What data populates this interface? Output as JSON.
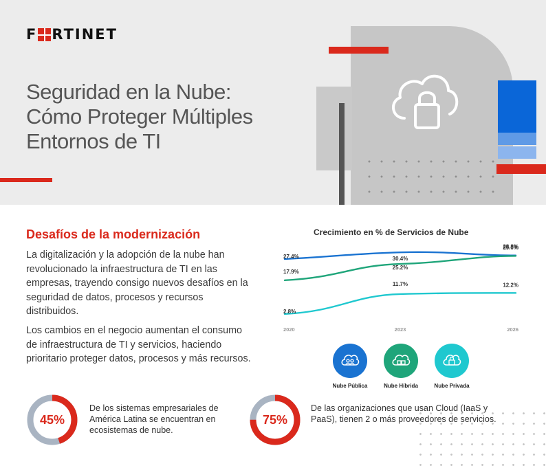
{
  "brand": {
    "logo_before": "F",
    "logo_after": "RTINET"
  },
  "hero": {
    "title_lines": [
      "Seguridad en la Nube:",
      "Cómo Proteger Múltiples",
      "Entornos de TI"
    ]
  },
  "section": {
    "title": "Desafíos de la modernización",
    "paragraphs": [
      "La digitalización y la adopción de la nube han revolucionado la infraestructura de TI en las empresas, trayendo consigo nuevos desafíos en la seguridad de datos, procesos y recursos distribuidos.",
      "Los cambios en el negocio aumentan el consumo de infraestructura de TI y servicios, haciendo prioritario proteger datos, procesos y más recursos."
    ]
  },
  "chart_data": {
    "type": "line",
    "title": "Crecimiento en % de Servicios de Nube",
    "x": [
      "2020",
      "2023",
      "2026"
    ],
    "series": [
      {
        "name": "Nube Pública",
        "values": [
          27.4,
          30.4,
          29.0
        ],
        "labels": [
          "27.4%",
          "30.4%",
          "29.0%"
        ],
        "color": "#1a73d1"
      },
      {
        "name": "Nube Híbrida",
        "values": [
          17.9,
          25.2,
          28.8
        ],
        "labels": [
          "17.9%",
          "25.2%",
          "28.8%"
        ],
        "color": "#1fa57a"
      },
      {
        "name": "Nube Privada",
        "values": [
          2.8,
          11.7,
          12.2
        ],
        "labels": [
          "2.8%",
          "11.7%",
          "12.2%"
        ],
        "color": "#1fc8cf"
      }
    ],
    "ylim": [
      0,
      32
    ],
    "grid": false,
    "legend": "bottom"
  },
  "legend_icons": [
    {
      "label": "Nube Pública",
      "color": "#1a73d1",
      "icon": "users-cloud-icon"
    },
    {
      "label": "Nube Híbrida",
      "color": "#1fa57a",
      "icon": "hybrid-cloud-icon"
    },
    {
      "label": "Nube Privada",
      "color": "#1fc8cf",
      "icon": "private-cloud-lock-icon"
    }
  ],
  "stats": [
    {
      "value": "45%",
      "fraction": 0.45,
      "text": "De los sistemas empresariales de América Latina se encuentran en ecosistemas de nube."
    },
    {
      "value": "75%",
      "fraction": 0.75,
      "text": "De las organizaciones que usan Cloud (IaaS y PaaS), tienen 2 o más proveedores de servicios."
    }
  ],
  "colors": {
    "accent": "#da291c",
    "donut_track": "#a9b4c2",
    "text": "#3a3a3a"
  }
}
